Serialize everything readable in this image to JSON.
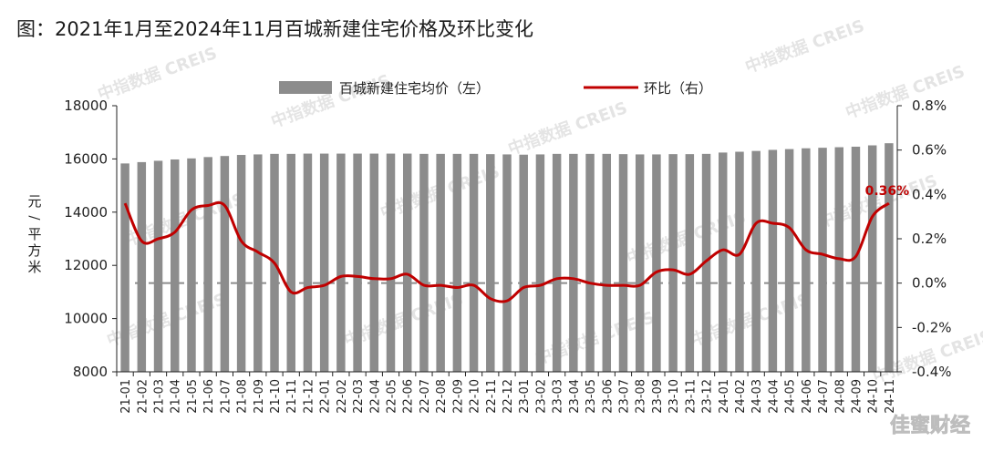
{
  "title": "图：2021年1月至2024年11月百城新建住宅价格及环比变化",
  "watermark": "中指数据 CREIS",
  "source_mark": "佳蜜财经",
  "colors": {
    "bar": "#8c8c8c",
    "line": "#c00000",
    "baseline": "#8c8c8c"
  },
  "chart_data": {
    "type": "bar",
    "categories": [
      "21-01",
      "21-02",
      "21-03",
      "21-04",
      "21-05",
      "21-06",
      "21-07",
      "21-08",
      "21-09",
      "21-10",
      "21-11",
      "21-12",
      "22-01",
      "22-02",
      "22-03",
      "22-04",
      "22-05",
      "22-06",
      "22-07",
      "22-08",
      "22-09",
      "22-10",
      "22-11",
      "22-12",
      "23-01",
      "23-02",
      "23-03",
      "23-04",
      "23-05",
      "23-06",
      "23-07",
      "23-08",
      "23-09",
      "23-10",
      "23-11",
      "23-12",
      "24-01",
      "24-02",
      "24-03",
      "24-04",
      "24-05",
      "24-06",
      "24-07",
      "24-08",
      "24-09",
      "24-10",
      "24-11"
    ],
    "series": [
      {
        "name": "百城新建住宅均价（左）",
        "type": "bar",
        "axis": "left",
        "values": [
          15830,
          15880,
          15930,
          15980,
          16020,
          16070,
          16110,
          16150,
          16170,
          16190,
          16190,
          16200,
          16200,
          16200,
          16200,
          16200,
          16200,
          16200,
          16190,
          16190,
          16190,
          16190,
          16180,
          16170,
          16160,
          16170,
          16190,
          16190,
          16190,
          16190,
          16180,
          16170,
          16170,
          16180,
          16180,
          16190,
          16240,
          16270,
          16300,
          16340,
          16370,
          16400,
          16420,
          16440,
          16460,
          16510,
          16590
        ]
      },
      {
        "name": "环比（右）",
        "type": "line",
        "axis": "right",
        "values": [
          0.36,
          0.19,
          0.2,
          0.23,
          0.33,
          0.35,
          0.35,
          0.19,
          0.14,
          0.09,
          -0.04,
          -0.02,
          -0.01,
          0.03,
          0.03,
          0.02,
          0.02,
          0.04,
          -0.01,
          -0.01,
          -0.02,
          -0.01,
          -0.07,
          -0.08,
          -0.02,
          -0.01,
          0.02,
          0.02,
          0.0,
          -0.01,
          -0.01,
          -0.01,
          0.05,
          0.06,
          0.04,
          0.1,
          0.15,
          0.13,
          0.27,
          0.27,
          0.25,
          0.15,
          0.13,
          0.11,
          0.12,
          0.3,
          0.36
        ]
      }
    ],
    "left_axis": {
      "label": "元/平方米",
      "ticks": [
        "8000",
        "10000",
        "12000",
        "14000",
        "16000",
        "18000"
      ],
      "ylim": [
        8000,
        18000
      ]
    },
    "right_axis": {
      "ticks": [
        "-0.4%",
        "-0.2%",
        "0.0%",
        "0.2%",
        "0.4%",
        "0.6%",
        "0.8%"
      ],
      "ylim": [
        -0.4,
        0.8
      ]
    },
    "annotation": "0.36%",
    "legend_position": "top",
    "grid": false
  }
}
